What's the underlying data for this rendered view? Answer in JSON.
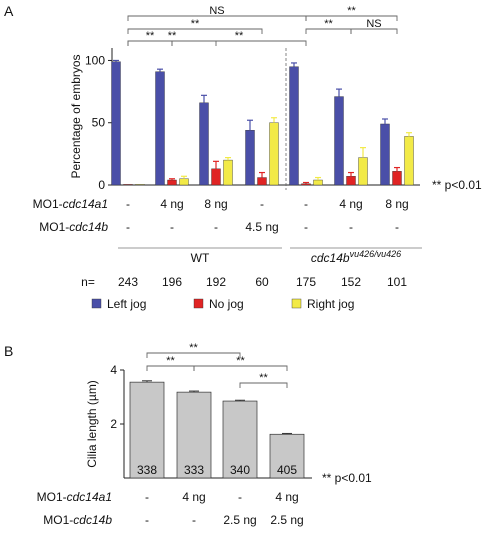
{
  "panels": {
    "a": {
      "label": "A"
    },
    "b": {
      "label": "B"
    }
  },
  "chart_data": [
    {
      "type": "bar",
      "panel": "A",
      "ylabel": "Percentage of embryos",
      "ylim": [
        0,
        110
      ],
      "yticks": [
        0,
        50,
        100
      ],
      "series": [
        {
          "name": "Left jog",
          "color": "#4a4fa8",
          "values": [
            99,
            91,
            66,
            44,
            95,
            71,
            49
          ]
        },
        {
          "name": "No jog",
          "color": "#e02424",
          "values": [
            0.5,
            4,
            13,
            6,
            1,
            7,
            11
          ]
        },
        {
          "name": "Right jog",
          "color": "#f2ea47",
          "values": [
            0.5,
            5,
            20,
            50,
            4,
            22,
            39
          ]
        }
      ],
      "errors": [
        [
          1,
          2,
          6,
          8,
          3,
          6,
          4
        ],
        [
          0,
          1,
          6,
          4,
          1,
          3,
          3
        ],
        [
          0,
          2,
          2,
          4,
          2,
          8,
          3
        ]
      ],
      "rows": [
        {
          "label": "MO1-",
          "gene": "cdc14a1",
          "values": [
            "-",
            "4 ng",
            "8 ng",
            "-",
            "-",
            "4 ng",
            "8 ng"
          ]
        },
        {
          "label": "MO1-",
          "gene": "cdc14b",
          "values": [
            "-",
            "-",
            "-",
            "4.5 ng",
            "-",
            "-",
            "-"
          ]
        }
      ],
      "groups": [
        {
          "label": "WT"
        },
        {
          "label": "cdc14b",
          "superscript": "vu426/vu426"
        }
      ],
      "n_label": "n=",
      "n_values": [
        "243",
        "196",
        "192",
        "60",
        "175",
        "152",
        "101"
      ],
      "significance": [
        {
          "from": 0,
          "to": 4,
          "text": "NS"
        },
        {
          "from": 4,
          "to": 6,
          "text": "**"
        },
        {
          "from": 0,
          "to": 3,
          "text": "**"
        },
        {
          "from": 4,
          "to": 5,
          "text": "**"
        },
        {
          "from": 5,
          "to": 6,
          "text": "NS"
        },
        {
          "from": 0,
          "to": 2,
          "text": "**"
        },
        {
          "from": 0,
          "to": 1,
          "text": "**"
        },
        {
          "from": 1,
          "to": 4,
          "text": "**"
        }
      ],
      "p_note": "** p<0.01"
    },
    {
      "type": "bar",
      "panel": "B",
      "ylabel": "Cilia length (µm)",
      "ylim": [
        0,
        4
      ],
      "yticks": [
        2,
        4
      ],
      "bar_color": "#c8c8c8",
      "values": [
        3.55,
        3.18,
        2.85,
        1.62
      ],
      "errors": [
        0.05,
        0.04,
        0.03,
        0.03
      ],
      "n_values": [
        "338",
        "333",
        "340",
        "405"
      ],
      "rows": [
        {
          "label": "MO1-",
          "gene": "cdc14a1",
          "values": [
            "-",
            "4 ng",
            "-",
            "4 ng"
          ]
        },
        {
          "label": "MO1-",
          "gene": "cdc14b",
          "values": [
            "-",
            "-",
            "2.5 ng",
            "2.5 ng"
          ]
        }
      ],
      "significance": [
        {
          "from": 0,
          "to": 2,
          "text": "**"
        },
        {
          "from": 0,
          "to": 1,
          "text": "**"
        },
        {
          "from": 1,
          "to": 3,
          "text": "**"
        },
        {
          "from": 2,
          "to": 3,
          "text": "**"
        }
      ],
      "p_note": "** p<0.01"
    }
  ]
}
